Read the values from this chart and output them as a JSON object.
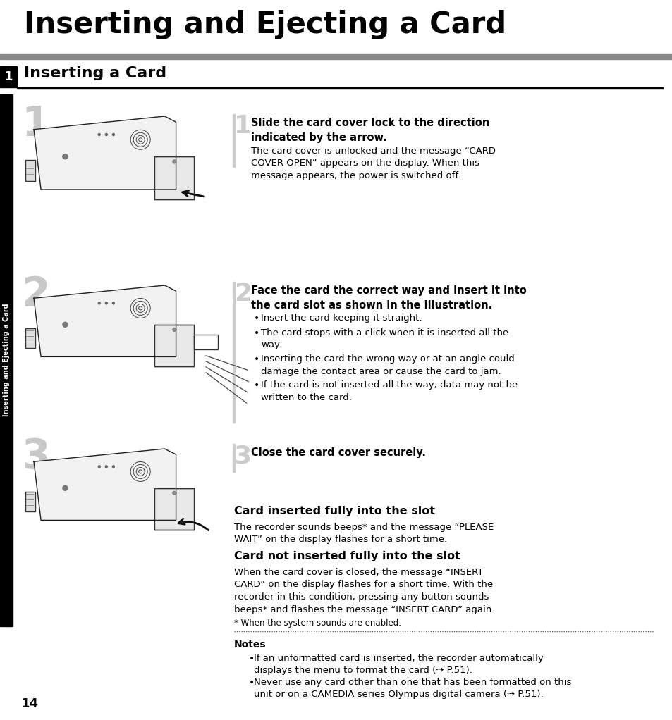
{
  "main_title": "Inserting and Ejecting a Card",
  "section_title": "Inserting a Card",
  "bg_color": "#ffffff",
  "title_bar_color": "#888888",
  "tab_color": "#000000",
  "tab_text": "Inserting and Ejecting a Card",
  "instruction1_bold": "Slide the card cover lock to the direction\nindicated by the arrow.",
  "instruction1_normal": "The card cover is unlocked and the message “CARD\nCOVER OPEN” appears on the display. When this\nmessage appears, the power is switched off.",
  "instruction2_bold": "Face the card the correct way and insert it into\nthe card slot as shown in the illustration.",
  "instruction2_bullets": [
    "Insert the card keeping it straight.",
    "The card stops with a click when it is inserted all the\nway.",
    "Inserting the card the wrong way or at an angle could\ndamage the contact area or cause the card to jam.",
    "If the card is not inserted all the way, data may not be\nwritten to the card."
  ],
  "instruction3_bold": "Close the card cover securely.",
  "subhead1": "Card inserted fully into the slot",
  "subtext1": "The recorder sounds beeps* and the message “PLEASE\nWAIT” on the display flashes for a short time.",
  "subhead2": "Card not inserted fully into the slot",
  "subtext2": "When the card cover is closed, the message “INSERT\nCARD” on the display flashes for a short time. With the\nrecorder in this condition, pressing any button sounds\nbeeps* and flashes the message “INSERT CARD” again.",
  "footnote": "* When the system sounds are enabled.",
  "notes_title": "Notes",
  "note1": "If an unformatted card is inserted, the recorder automatically\ndisplays the menu to format the card (⇢ P.51).",
  "note2": "Never use any card other than one that has been formatted on this\nunit or on a CAMEDIA series Olympus digital camera (⇢ P.51).",
  "page_number": "14"
}
